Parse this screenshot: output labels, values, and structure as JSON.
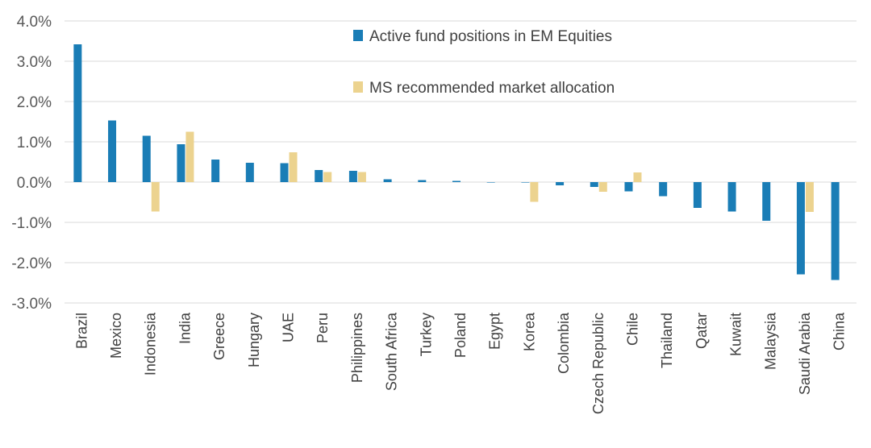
{
  "chart_data": {
    "type": "bar",
    "categories": [
      "Brazil",
      "Mexico",
      "Indonesia",
      "India",
      "Greece",
      "Hungary",
      "UAE",
      "Peru",
      "Philippines",
      "South Africa",
      "Turkey",
      "Poland",
      "Egypt",
      "Korea",
      "Colombia",
      "Czech Republic",
      "Chile",
      "Thailand",
      "Qatar",
      "Kuwait",
      "Malaysia",
      "Saudi Arabia",
      "China"
    ],
    "series": [
      {
        "name": "Active fund positions in EM Equities",
        "color": "#1a7db6",
        "values": [
          3.42,
          1.53,
          1.15,
          0.94,
          0.56,
          0.48,
          0.47,
          0.3,
          0.28,
          0.07,
          0.05,
          0.03,
          0.0,
          0.0,
          -0.08,
          -0.12,
          -0.23,
          -0.35,
          -0.64,
          -0.73,
          -0.96,
          -2.29,
          -2.43
        ]
      },
      {
        "name": "MS recommended market allocation",
        "color": "#ecd38f",
        "values": [
          null,
          null,
          -0.73,
          1.25,
          null,
          null,
          0.74,
          0.25,
          0.25,
          null,
          null,
          null,
          null,
          -0.49,
          null,
          -0.24,
          0.24,
          null,
          null,
          null,
          null,
          -0.74,
          null
        ]
      }
    ],
    "yticks": [
      "4.0%",
      "3.0%",
      "2.0%",
      "1.0%",
      "0.0%",
      "-1.0%",
      "-2.0%",
      "-3.0%"
    ],
    "ylim": [
      -3.0,
      4.0
    ],
    "grid": true,
    "legend_position": "top-right"
  }
}
